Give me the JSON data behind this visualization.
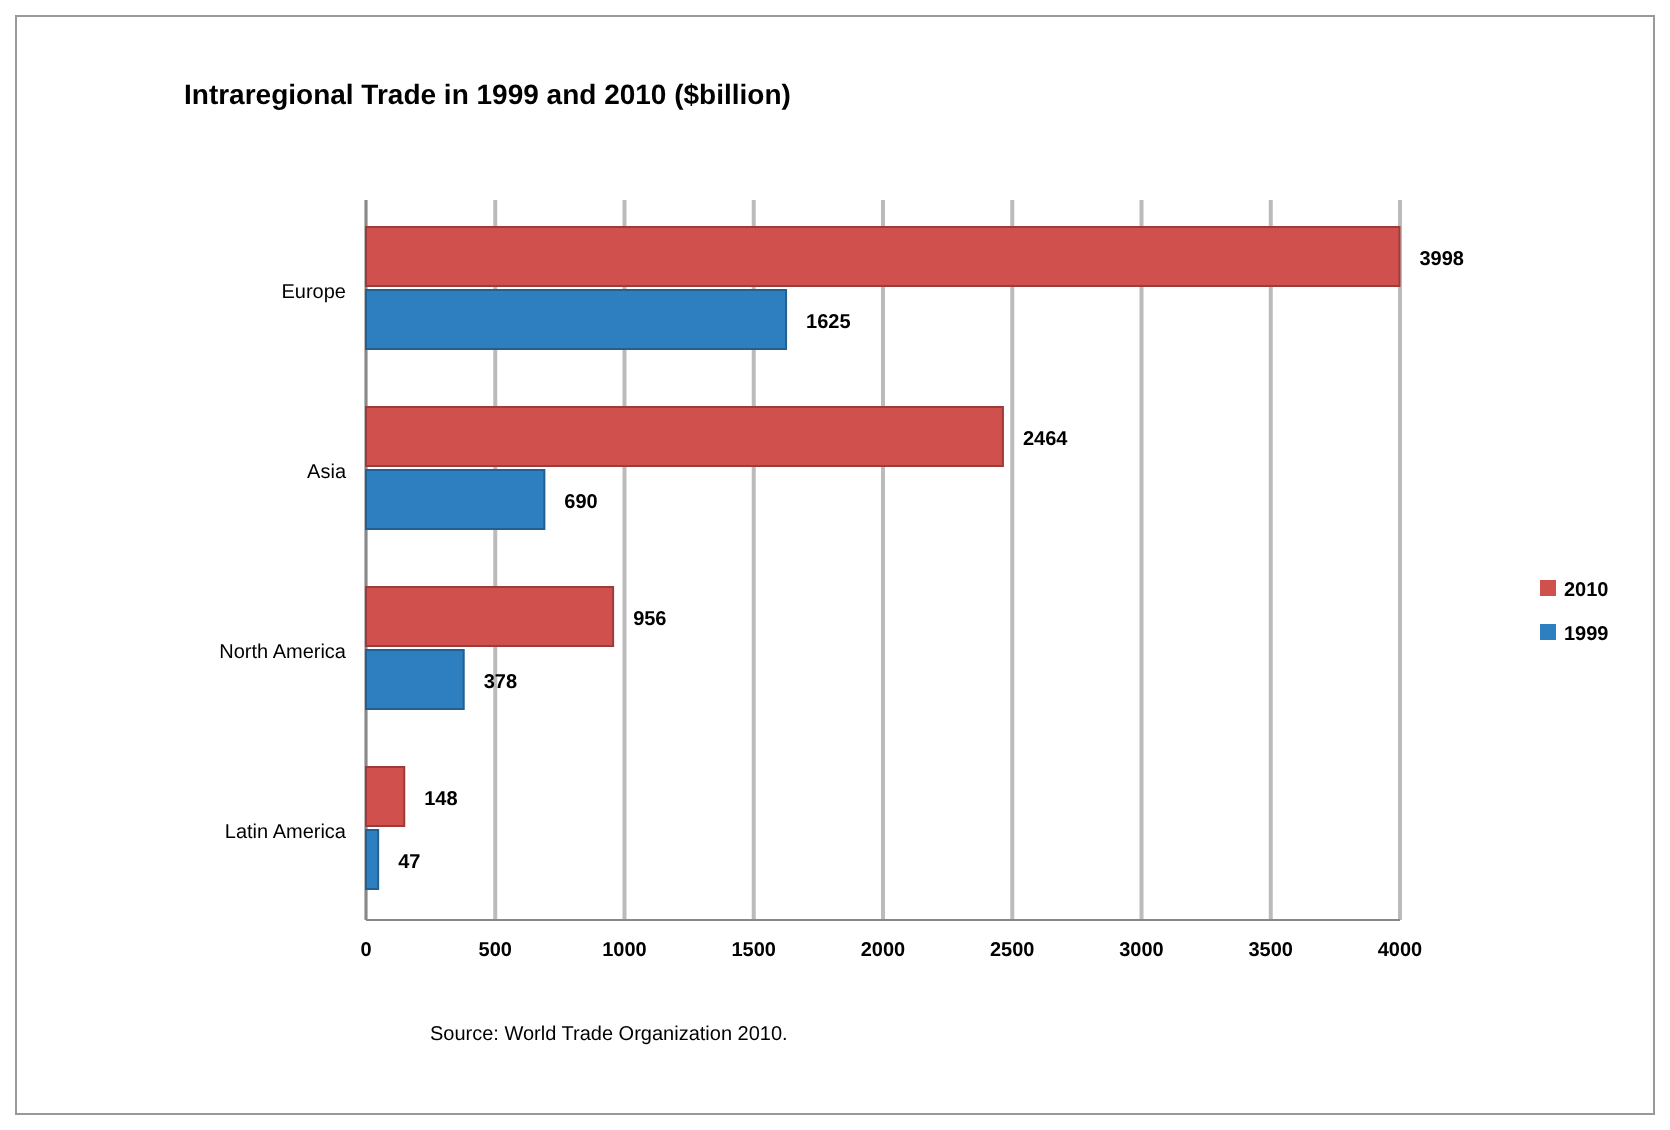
{
  "chart_data": {
    "type": "bar",
    "orientation": "horizontal",
    "title": "Intraregional Trade in 1999 and 2010 ($billion)",
    "categories": [
      "Europe",
      "Asia",
      "North America",
      "Latin America"
    ],
    "series": [
      {
        "name": "2010",
        "color": "#d0504d",
        "values": [
          3998,
          2464,
          956,
          148
        ]
      },
      {
        "name": "1999",
        "color": "#2e7fbf",
        "values": [
          1625,
          690,
          378,
          47
        ]
      }
    ],
    "xlim": [
      0,
      4000
    ],
    "xticks": [
      0,
      500,
      1000,
      1500,
      2000,
      2500,
      3000,
      3500,
      4000
    ],
    "grid": "x",
    "legend": "right",
    "data_labels": true,
    "annotations": [
      "Source: World Trade Organization 2010."
    ]
  }
}
